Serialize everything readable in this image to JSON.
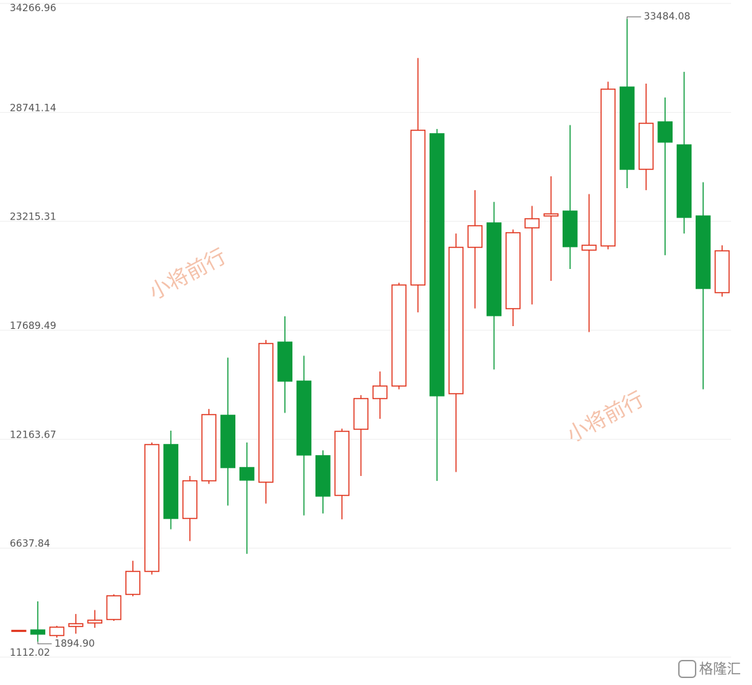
{
  "chart_data": {
    "type": "candlestick",
    "up_color": "#e0331c",
    "down_color": "#0a9a3a",
    "ylim": [
      1112.02,
      34266.96
    ],
    "yticks": [
      1112.02,
      6637.84,
      12163.67,
      17689.49,
      23215.31,
      28741.14,
      34266.96
    ],
    "grid": true,
    "open": [
      2440,
      2490,
      2208,
      2667,
      2844,
      3020,
      4293,
      5460,
      11894,
      8147,
      10056,
      13379,
      10727,
      9985,
      17090,
      15112,
      11329,
      9315,
      12671,
      14227,
      14863,
      19988,
      27660,
      14474,
      21898,
      23136,
      18787,
      22887,
      23489,
      23736,
      21756,
      21969,
      30027,
      25856,
      28261,
      27094,
      23489,
      19600
    ],
    "high": [
      2480,
      3940,
      2700,
      3300,
      3500,
      4300,
      6000,
      12000,
      12600,
      10300,
      13700,
      16300,
      12000,
      17200,
      18400,
      16400,
      11600,
      12700,
      14400,
      15600,
      20100,
      31500,
      27900,
      22600,
      24800,
      24200,
      22800,
      24000,
      25500,
      28100,
      24600,
      30300,
      33484.08,
      30200,
      29500,
      30800,
      25200,
      22000
    ],
    "low": [
      2430,
      1894.9,
      2100,
      2300,
      2600,
      2950,
      4200,
      5300,
      7600,
      7000,
      9900,
      8800,
      6350,
      8900,
      13500,
      8300,
      8400,
      8100,
      10300,
      13200,
      14700,
      18600,
      10050,
      10500,
      18800,
      15700,
      17900,
      19000,
      20200,
      20800,
      17600,
      21800,
      24900,
      24800,
      21500,
      22600,
      14700,
      19400
    ],
    "close": [
      2470,
      2279,
      2632,
      2808,
      2985,
      4223,
      5460,
      11894,
      8147,
      10056,
      13414,
      10727,
      10091,
      17020,
      15112,
      11364,
      9279,
      12565,
      14227,
      14863,
      19988,
      27836,
      14368,
      21898,
      22994,
      18434,
      22640,
      23348,
      23595,
      21933,
      22004,
      29921,
      25856,
      28190,
      27236,
      23418,
      19812,
      21721
    ],
    "annotations": [
      {
        "text": "33484.08",
        "value": 33484.08
      },
      {
        "text": "1894.90",
        "value": 1894.9
      }
    ],
    "watermarks": [
      "小将前行",
      "小将前行"
    ],
    "logo": "格隆汇"
  }
}
